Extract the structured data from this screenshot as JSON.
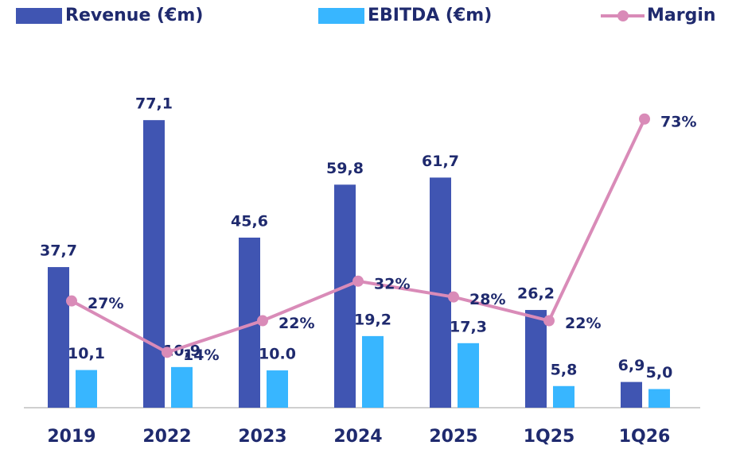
{
  "chart_data": {
    "type": "bar",
    "categories": [
      "2019",
      "2022",
      "2023",
      "2024",
      "2025",
      "1Q25",
      "1Q26"
    ],
    "series": [
      {
        "name": "Revenue (€m)",
        "color": "#4055b2",
        "values": [
          37.7,
          77.1,
          45.6,
          59.8,
          61.7,
          26.2,
          6.9
        ],
        "value_labels": [
          "37,7",
          "77,1",
          "45,6",
          "59,8",
          "61,7",
          "26,2",
          "6,9"
        ]
      },
      {
        "name": "EBITDA (€m)",
        "color": "#38b6ff",
        "values": [
          10.1,
          10.9,
          10.0,
          19.2,
          17.3,
          5.8,
          5.0
        ],
        "value_labels": [
          "10,1",
          "10,9",
          "10.0",
          "19,2",
          "17,3",
          "5,8",
          "5,0"
        ]
      },
      {
        "name": "Margin",
        "color": "#d98bb8",
        "type": "line",
        "axis": "y2",
        "values": [
          27,
          14,
          22,
          32,
          28,
          22,
          73
        ],
        "value_labels": [
          "27%",
          "14%",
          "22%",
          "32%",
          "28%",
          "22%",
          "73%"
        ]
      }
    ],
    "ylim": [
      0,
      88
    ],
    "y2lim": [
      0,
      83
    ],
    "legend": "top"
  }
}
